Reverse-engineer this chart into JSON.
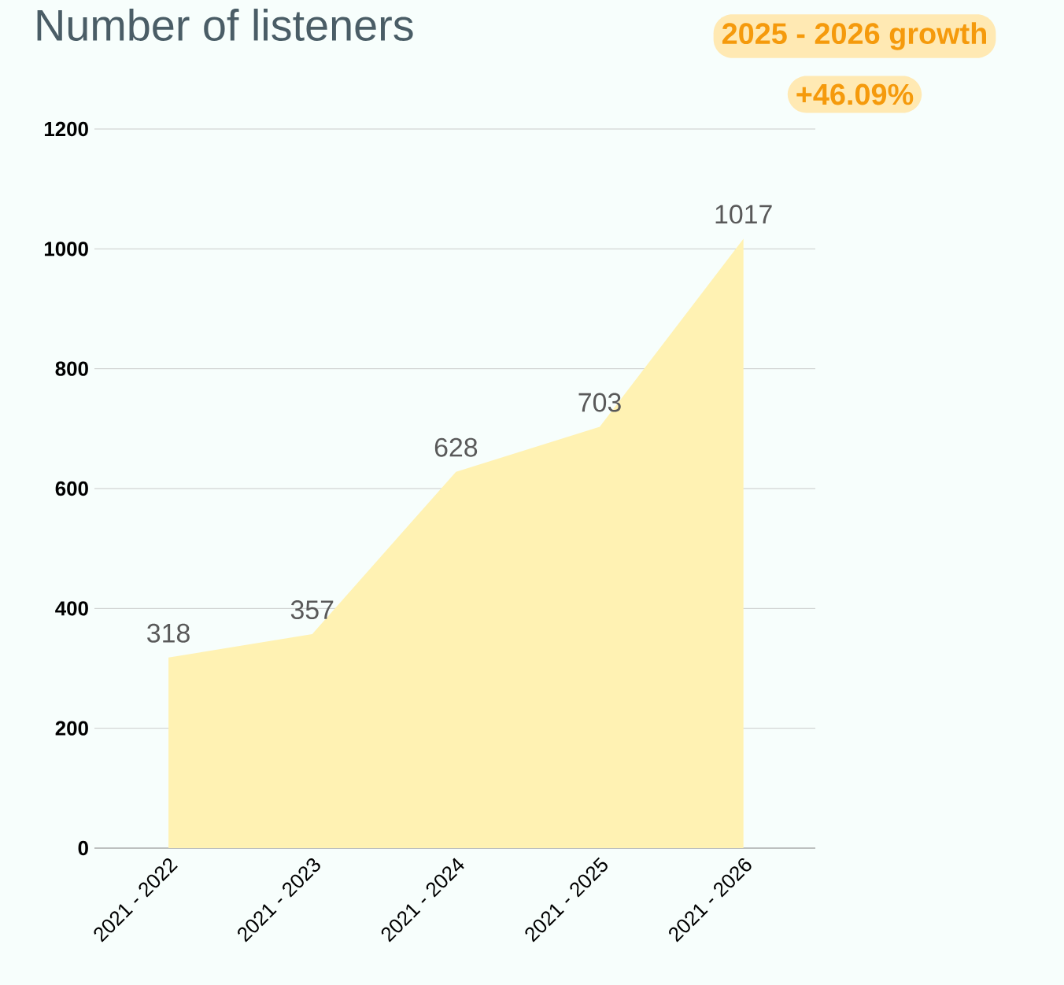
{
  "chart_data": {
    "type": "area",
    "title": "Number of listeners",
    "categories": [
      "2021 - 2022",
      "2021 - 2023",
      "2021 - 2024",
      "2021 - 2025",
      "2021 - 2026"
    ],
    "values": [
      318,
      357,
      628,
      703,
      1017
    ],
    "color": "#fff2b3",
    "ylim": [
      0,
      1200
    ],
    "yticks": [
      0,
      200,
      400,
      600,
      800,
      1000,
      1200
    ],
    "grid": "y",
    "data_labels": true,
    "annotations": [
      "2025 - 2026 growth",
      "+46.09%"
    ]
  }
}
